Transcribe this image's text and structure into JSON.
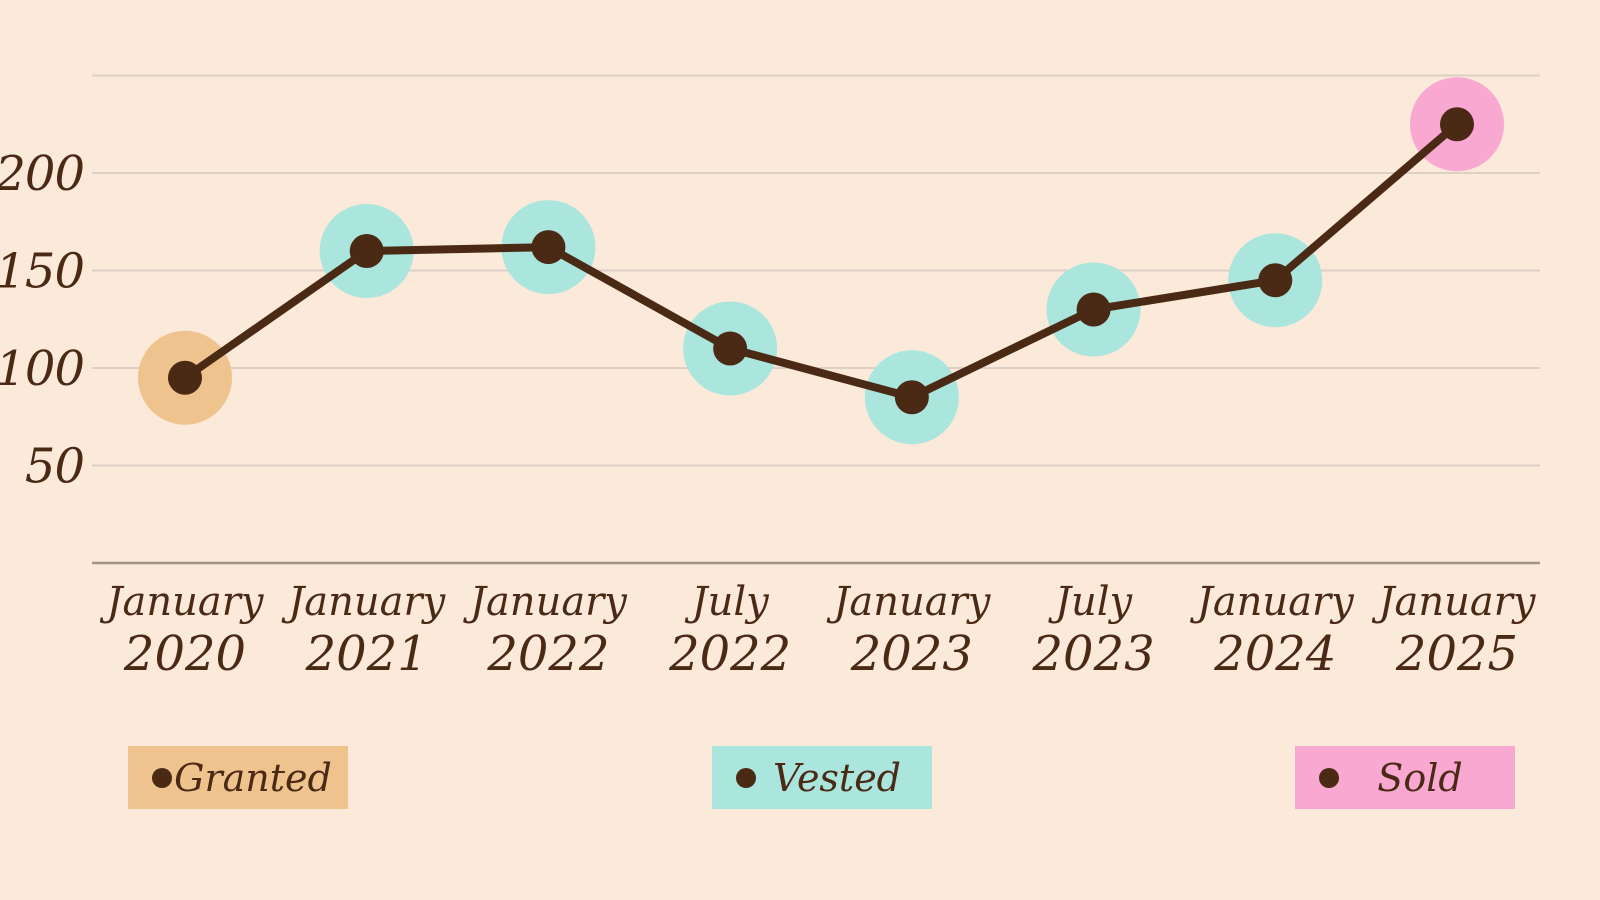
{
  "colors": {
    "background": "#fbe9da",
    "gridline": "#ddd0c7",
    "axis_line": "#a2948a",
    "text": "#4b2a15",
    "line": "#4b2a15",
    "marker": "#4b2a15"
  },
  "chart_data": {
    "type": "line",
    "categories": [
      "January 2020",
      "January 2021",
      "January 2022",
      "July 2022",
      "January 2023",
      "July 2023",
      "January 2024",
      "January 2025"
    ],
    "values": [
      95,
      160,
      162,
      110,
      85,
      130,
      145,
      225
    ],
    "point_highlight": [
      "Granted",
      "Vested",
      "Vested",
      "Vested",
      "Vested",
      "Vested",
      "Vested",
      "Sold"
    ],
    "title": "",
    "xlabel": "",
    "ylabel": "",
    "ylim": [
      0,
      250
    ],
    "yticks": [
      50,
      100,
      150,
      200
    ],
    "ygridlines": [
      50,
      100,
      150,
      200,
      250
    ],
    "grid": true,
    "legend_position": "bottom",
    "legend": [
      {
        "label": "Granted",
        "color": "#eec38e"
      },
      {
        "label": "Vested",
        "color": "#aae5de"
      },
      {
        "label": "Sold",
        "color": "#f9a8d2"
      }
    ]
  }
}
